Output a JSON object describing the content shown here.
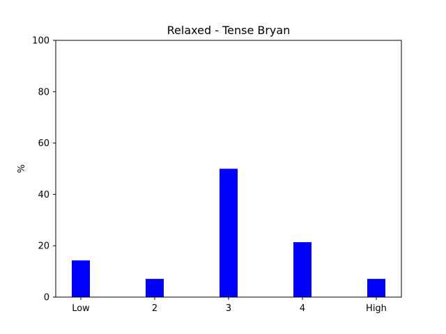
{
  "chart_data": {
    "type": "bar",
    "title": "Relaxed - Tense Bryan",
    "xlabel": "",
    "ylabel": "%",
    "categories": [
      "Low",
      "2",
      "3",
      "4",
      "High"
    ],
    "values": [
      14.3,
      7.1,
      50.0,
      21.4,
      7.1
    ],
    "ylim": [
      0,
      100
    ],
    "yticks": [
      0,
      20,
      40,
      60,
      80,
      100
    ],
    "bar_color": "#0000ff",
    "grid": false,
    "legend": "none"
  }
}
